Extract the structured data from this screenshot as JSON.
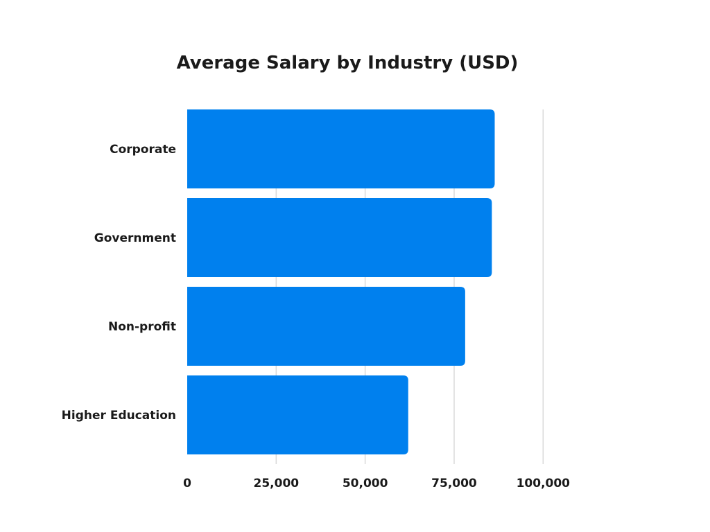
{
  "chart_data": {
    "type": "bar",
    "orientation": "horizontal",
    "title": "Average Salary by Industry (USD)",
    "categories": [
      "Corporate",
      "Government",
      "Non-profit",
      "Higher Education"
    ],
    "values": [
      86400,
      85600,
      78100,
      62100
    ],
    "xlim": [
      0,
      100000
    ],
    "xticks": [
      0,
      25000,
      50000,
      75000,
      100000
    ],
    "xtick_labels": [
      "0",
      "25,000",
      "50,000",
      "75,000",
      "100,000"
    ],
    "grid": "vertical",
    "bar_color": "#0080EE",
    "gridline_color": "#D9D9D9"
  }
}
